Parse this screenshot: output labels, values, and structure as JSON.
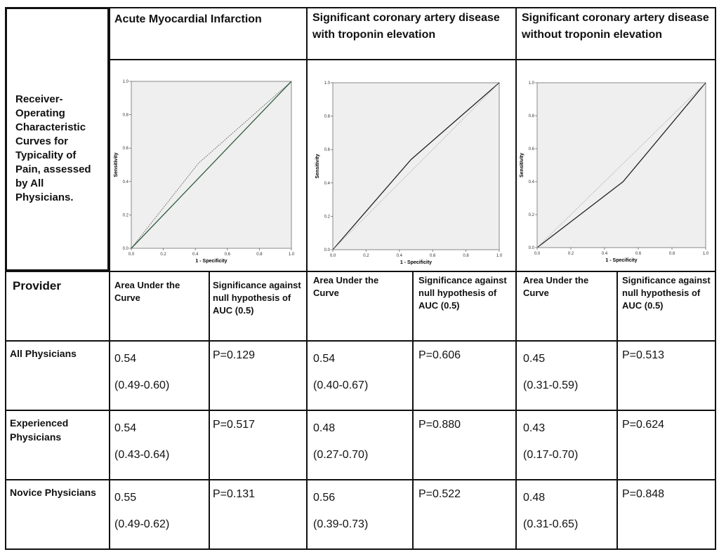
{
  "row_label": "Receiver-Operating Characteristic Curves for Typicality of Pain, assessed by All Physicians.",
  "columns": [
    "Acute Myocardial Infarction",
    "Significant coronary artery disease with troponin elevation",
    "Significant coronary artery disease without troponin elevation"
  ],
  "subheaders": {
    "provider": "Provider",
    "auc": "Area Under the Curve",
    "sig": "Significance against null hypothesis of AUC (0.5)"
  },
  "rows": [
    {
      "provider": "All Physicians",
      "cells": [
        {
          "auc": "0.54",
          "ci": "(0.49-0.60)",
          "p": "P=0.129"
        },
        {
          "auc": "0.54",
          "ci": "(0.40-0.67)",
          "p": "P=0.606"
        },
        {
          "auc": "0.45",
          "ci": "(0.31-0.59)",
          "p": "P=0.513"
        }
      ]
    },
    {
      "provider": "Experienced Physicians",
      "cells": [
        {
          "auc": "0.54",
          "ci": "(0.43-0.64)",
          "p": "P=0.517"
        },
        {
          "auc": "0.48",
          "ci": "(0.27-0.70)",
          "p": "P=0.880"
        },
        {
          "auc": "0.43",
          "ci": "(0.17-0.70)",
          "p": "P=0.624"
        }
      ]
    },
    {
      "provider": "Novice Physicians",
      "cells": [
        {
          "auc": "0.55",
          "ci": "(0.49-0.62)",
          "p": "P=0.131"
        },
        {
          "auc": "0.56",
          "ci": "(0.39-0.73)",
          "p": "P=0.522"
        },
        {
          "auc": "0.48",
          "ci": "(0.31-0.65)",
          "p": "P=0.848"
        }
      ]
    }
  ],
  "chart_data": [
    {
      "type": "line",
      "xlabel": "1 - Specificity",
      "ylabel": "Sensitivity",
      "xticks": [
        "0.0",
        "0.2",
        "0.4",
        "0.6",
        "0.8",
        "1.0"
      ],
      "yticks": [
        "0.0",
        "0.2",
        "0.4",
        "0.6",
        "0.8",
        "1.0"
      ],
      "xlim": [
        0,
        1
      ],
      "ylim": [
        0,
        1
      ],
      "series": [
        {
          "role": "roc",
          "style": "dotted",
          "x": [
            0,
            0.42,
            1
          ],
          "y": [
            0,
            0.51,
            1
          ]
        },
        {
          "role": "reference",
          "style": "solid",
          "x": [
            0,
            1
          ],
          "y": [
            0,
            1
          ]
        }
      ]
    },
    {
      "type": "line",
      "xlabel": "1 - Specificity",
      "ylabel": "Sensitivity",
      "xticks": [
        "0.0",
        "0.2",
        "0.4",
        "0.6",
        "0.8",
        "1.0"
      ],
      "yticks": [
        "0.0",
        "0.2",
        "0.4",
        "0.6",
        "0.8",
        "1.0"
      ],
      "xlim": [
        0,
        1
      ],
      "ylim": [
        0,
        1
      ],
      "series": [
        {
          "role": "roc",
          "style": "solid",
          "x": [
            0,
            0.47,
            1
          ],
          "y": [
            0,
            0.54,
            1
          ]
        },
        {
          "role": "reference",
          "style": "dotted",
          "x": [
            0,
            1
          ],
          "y": [
            0,
            1
          ]
        }
      ]
    },
    {
      "type": "line",
      "xlabel": "1 - Specificity",
      "ylabel": "Sensitivity",
      "xticks": [
        "0.0",
        "0.2",
        "0.4",
        "0.6",
        "0.8",
        "1.0"
      ],
      "yticks": [
        "0.0",
        "0.2",
        "0.4",
        "0.6",
        "0.8",
        "1.0"
      ],
      "xlim": [
        0,
        1
      ],
      "ylim": [
        0,
        1
      ],
      "series": [
        {
          "role": "roc",
          "style": "solid",
          "x": [
            0,
            0.51,
            1
          ],
          "y": [
            0,
            0.4,
            1
          ]
        },
        {
          "role": "reference",
          "style": "dotted",
          "x": [
            0,
            1
          ],
          "y": [
            0,
            1
          ]
        }
      ]
    }
  ]
}
